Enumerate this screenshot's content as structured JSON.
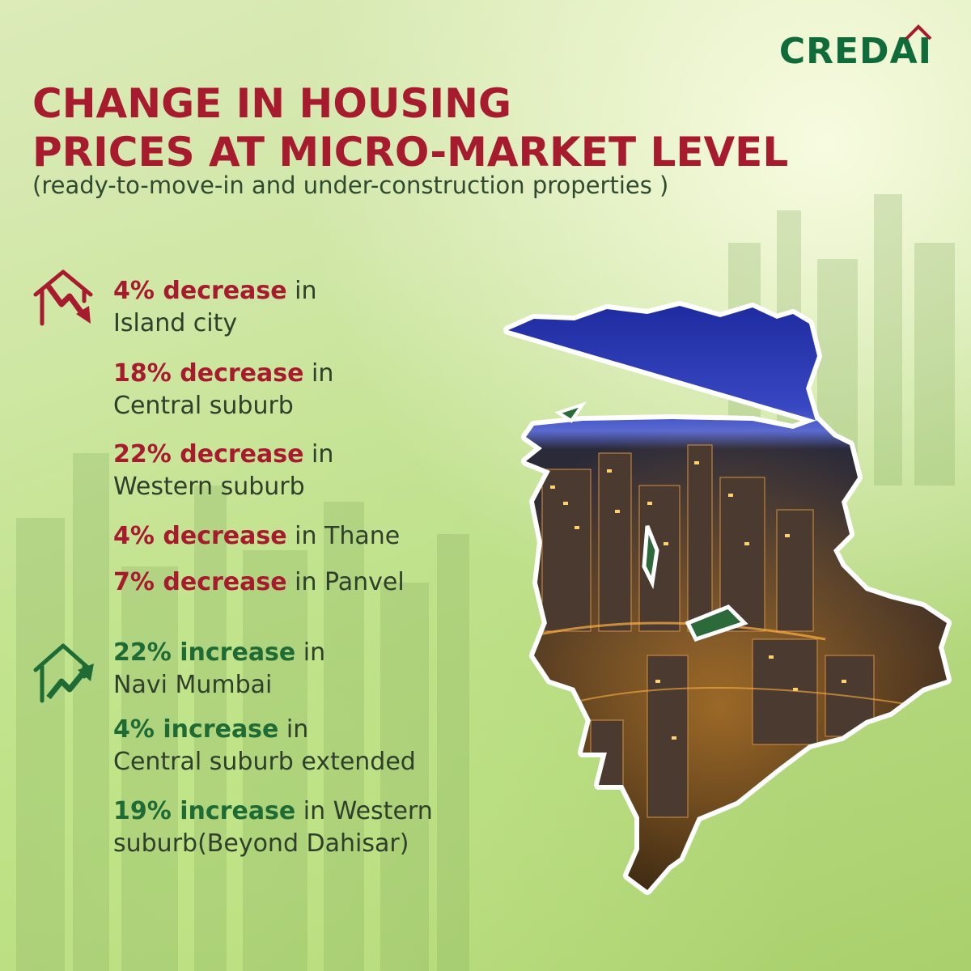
{
  "brand": {
    "name": "CREDAI"
  },
  "header": {
    "title_line1": "CHANGE IN HOUSING",
    "title_line2": "PRICES AT MICRO-MARKET LEVEL",
    "subtitle": "(ready-to-move-in and under-construction properties )"
  },
  "decreases": [
    {
      "highlight": "4% decrease",
      "rest_line1": " in",
      "rest_line2": "Island city"
    },
    {
      "highlight": "18% decrease",
      "rest_line1": " in",
      "rest_line2": "Central suburb"
    },
    {
      "highlight": "22% decrease",
      "rest_line1": " in",
      "rest_line2": "Western suburb"
    },
    {
      "highlight": "4% decrease",
      "rest_line1": " in Thane",
      "rest_line2": ""
    },
    {
      "highlight": "7% decrease",
      "rest_line1": " in Panvel",
      "rest_line2": ""
    }
  ],
  "increases": [
    {
      "highlight": "22% increase",
      "rest_line1": " in",
      "rest_line2": "Navi Mumbai"
    },
    {
      "highlight": "4% increase",
      "rest_line1": " in",
      "rest_line2": "Central suburb extended"
    },
    {
      "highlight": "19% increase",
      "rest_line1": " in Western",
      "rest_line2": "suburb(Beyond Dahisar)"
    }
  ],
  "icons": {
    "decrease": "house-down-arrow-icon",
    "increase": "house-up-arrow-icon"
  },
  "colors": {
    "decrease": "#a61b2e",
    "increase": "#1f6b35",
    "brand": "#0f6b3a"
  }
}
